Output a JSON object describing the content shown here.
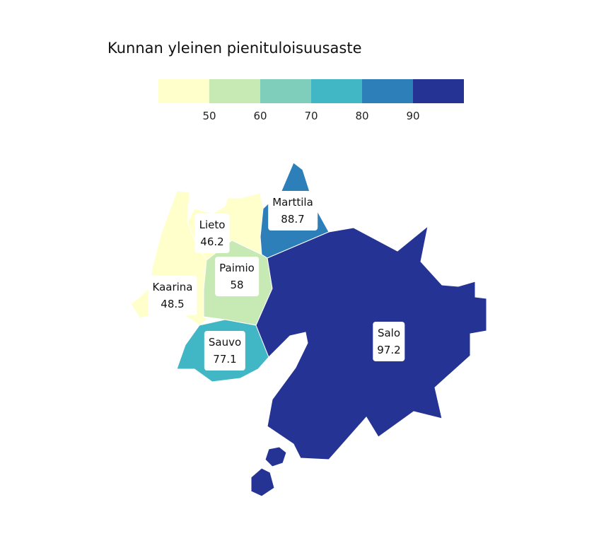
{
  "title": "Kunnan yleinen pienituloisuusaste",
  "legend": {
    "colors": [
      "#ffffcc",
      "#c7e9b4",
      "#7fcdbb",
      "#41b6c4",
      "#2c7fb8",
      "#253494"
    ],
    "ticks": [
      "50",
      "60",
      "70",
      "80",
      "90"
    ]
  },
  "regions": [
    {
      "name": "Salo",
      "value": "97.2",
      "color": "#253494"
    },
    {
      "name": "Marttila",
      "value": "88.7",
      "color": "#2c7fb8"
    },
    {
      "name": "Sauvo",
      "value": "77.1",
      "color": "#41b6c4"
    },
    {
      "name": "Paimio",
      "value": "58",
      "color": "#c7e9b4"
    },
    {
      "name": "Lieto",
      "value": "46.2",
      "color": "#ffffcc"
    },
    {
      "name": "Kaarina",
      "value": "48.5",
      "color": "#ffffcc"
    }
  ]
}
